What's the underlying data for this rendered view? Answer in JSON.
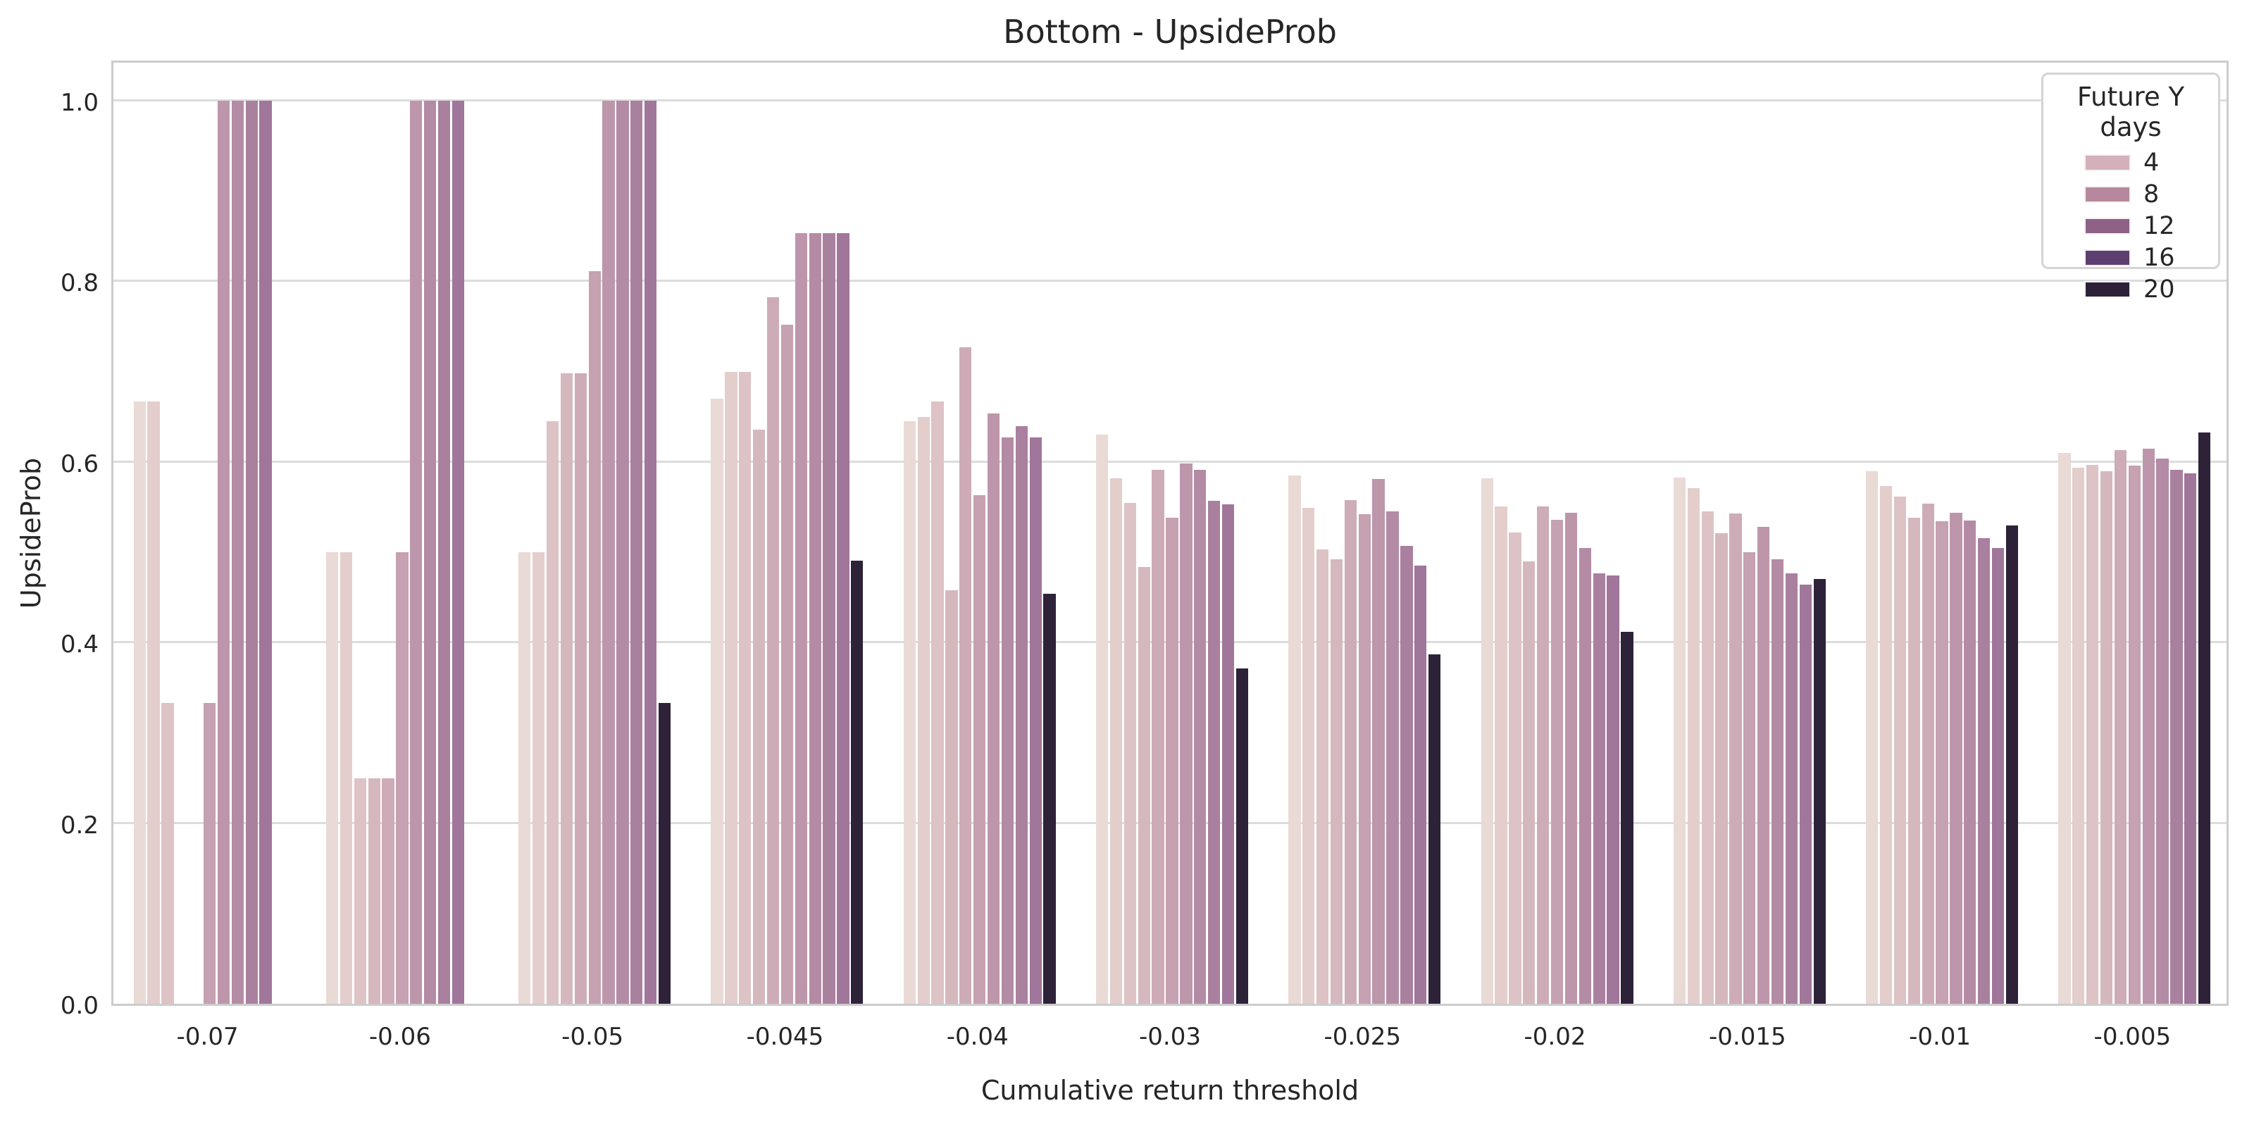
{
  "title": "Bottom - UpsideProb",
  "axes": {
    "x_label": "Cumulative return threshold",
    "y_label": "UpsideProb",
    "y_ticks": [
      "0.0",
      "0.2",
      "0.4",
      "0.6",
      "0.8",
      "1.0"
    ]
  },
  "legend": {
    "title": "Future Y days",
    "entries": [
      {
        "label": "4",
        "color": "#d4b0bb"
      },
      {
        "label": "8",
        "color": "#b7879d"
      },
      {
        "label": "12",
        "color": "#8f6186"
      },
      {
        "label": "16",
        "color": "#5c3f70"
      },
      {
        "label": "20",
        "color": "#2d2139"
      }
    ]
  },
  "chart_data": {
    "type": "bar",
    "title": "Bottom - UpsideProb",
    "xlabel": "Cumulative return threshold",
    "ylabel": "UpsideProb",
    "ylim": [
      0.0,
      1.047
    ],
    "grid": true,
    "grid_color": "#dcdcdc",
    "background": "#ffffff",
    "legend_position": "upper right",
    "legend_title": "Future Y days",
    "legend_labels": [
      "4",
      "8",
      "12",
      "16",
      "20"
    ],
    "categories": [
      "-0.07",
      "-0.06",
      "-0.05",
      "-0.045",
      "-0.04",
      "-0.03",
      "-0.025",
      "-0.02",
      "-0.015",
      "-0.01",
      "-0.005"
    ],
    "series": [
      {
        "name": "hue-01",
        "color": "#e9dad5",
        "values": [
          0.667,
          0.5,
          0.5,
          0.67,
          0.645,
          0.63,
          0.585,
          0.582,
          0.583,
          0.59,
          0.61
        ]
      },
      {
        "name": "hue-02",
        "color": "#e3cecb",
        "values": [
          0.667,
          0.5,
          0.5,
          0.7,
          0.65,
          0.582,
          0.549,
          0.551,
          0.571,
          0.573,
          0.594
        ]
      },
      {
        "name": "hue-03",
        "color": "#ddc3c5",
        "values": [
          0.333,
          0.25,
          0.645,
          0.7,
          0.667,
          0.555,
          0.503,
          0.522,
          0.545,
          0.562,
          0.597
        ]
      },
      {
        "name": "hue-04",
        "color": "#d5b8bd",
        "values": [
          null,
          0.25,
          0.698,
          0.636,
          0.458,
          0.484,
          0.492,
          0.49,
          0.521,
          0.538,
          0.59
        ]
      },
      {
        "name": "hue-05",
        "color": "#cdacb7",
        "values": [
          null,
          0.25,
          0.698,
          0.782,
          0.727,
          0.591,
          0.558,
          0.551,
          0.543,
          0.554,
          0.613
        ]
      },
      {
        "name": "hue-06",
        "color": "#c5a1b1",
        "values": [
          0.333,
          0.5,
          0.811,
          0.752,
          0.563,
          0.538,
          0.542,
          0.536,
          0.5,
          0.534,
          0.596
        ]
      },
      {
        "name": "hue-07",
        "color": "#bd96ab",
        "values": [
          1.0,
          1.0,
          1.0,
          0.853,
          0.654,
          0.598,
          0.581,
          0.544,
          0.528,
          0.544,
          0.615
        ]
      },
      {
        "name": "hue-08",
        "color": "#b48ba5",
        "values": [
          1.0,
          1.0,
          1.0,
          0.853,
          0.627,
          0.591,
          0.545,
          0.505,
          0.492,
          0.535,
          0.604
        ]
      },
      {
        "name": "hue-09",
        "color": "#aa809f",
        "values": [
          1.0,
          1.0,
          1.0,
          0.853,
          0.64,
          0.557,
          0.507,
          0.477,
          0.477,
          0.516,
          0.591
        ]
      },
      {
        "name": "hue-10",
        "color": "#a0769a",
        "values": [
          1.0,
          1.0,
          1.0,
          0.853,
          0.627,
          0.553,
          0.485,
          0.474,
          0.464,
          0.505,
          0.587
        ]
      },
      {
        "name": "hue-11",
        "color": "#2e2239",
        "values": [
          null,
          null,
          0.333,
          0.491,
          0.454,
          0.371,
          0.387,
          0.412,
          0.47,
          0.53,
          0.633
        ]
      }
    ]
  }
}
